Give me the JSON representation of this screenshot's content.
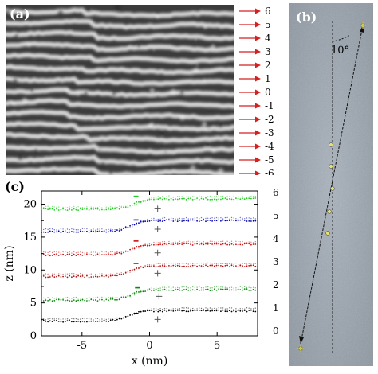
{
  "figure": {
    "panel_a": {
      "label": "(a)"
    },
    "panel_b": {
      "label": "(b)",
      "angle_label": "10°"
    },
    "panel_c": {
      "label": "(c)"
    },
    "row_indices": [
      "6",
      "5",
      "4",
      "3",
      "2",
      "1",
      "0",
      "-1",
      "-2",
      "-3",
      "-4",
      "-5",
      "-6"
    ],
    "arrow_color": "#d42020"
  },
  "chart_data": {
    "type": "scatter",
    "xlabel": "x (nm)",
    "ylabel": "z (nm)",
    "xlim": [
      -8,
      8
    ],
    "ylim": [
      0,
      22
    ],
    "xticks": [
      -5,
      0,
      5
    ],
    "yticks": [
      0,
      5,
      10,
      15,
      20
    ],
    "right_labels": [
      "6",
      "5",
      "4",
      "3",
      "2",
      "1",
      "0"
    ],
    "grid": false,
    "series": [
      {
        "color": "#000000",
        "left": 2.2,
        "right": 3.8,
        "step_center": -1.6,
        "minus_at": [
          -1.0,
          3.4
        ],
        "plus_at": [
          0.6,
          2.5
        ]
      },
      {
        "color": "#0a8a0a",
        "left": 5.4,
        "right": 7.0,
        "step_center": -1.4,
        "minus_at": [
          -0.9,
          7.3
        ],
        "plus_at": [
          0.7,
          6.0
        ]
      },
      {
        "color": "#b01010",
        "left": 9.0,
        "right": 10.6,
        "step_center": -1.5,
        "minus_at": [
          -1.0,
          11.0
        ],
        "plus_at": [
          0.6,
          9.5
        ]
      },
      {
        "color": "#cc1010",
        "left": 12.3,
        "right": 13.9,
        "step_center": -1.4,
        "minus_at": [
          -1.0,
          14.4
        ],
        "plus_at": [
          0.6,
          12.6
        ]
      },
      {
        "color": "#0000aa",
        "left": 15.8,
        "right": 17.5,
        "step_center": -1.5,
        "minus_at": [
          -1.0,
          17.6
        ],
        "plus_at": [
          0.6,
          16.2
        ]
      },
      {
        "color": "#22cc22",
        "left": 19.2,
        "right": 20.8,
        "step_center": -1.2,
        "minus_at": [
          -1.0,
          21.2
        ],
        "plus_at": [
          0.6,
          19.3
        ]
      }
    ]
  }
}
